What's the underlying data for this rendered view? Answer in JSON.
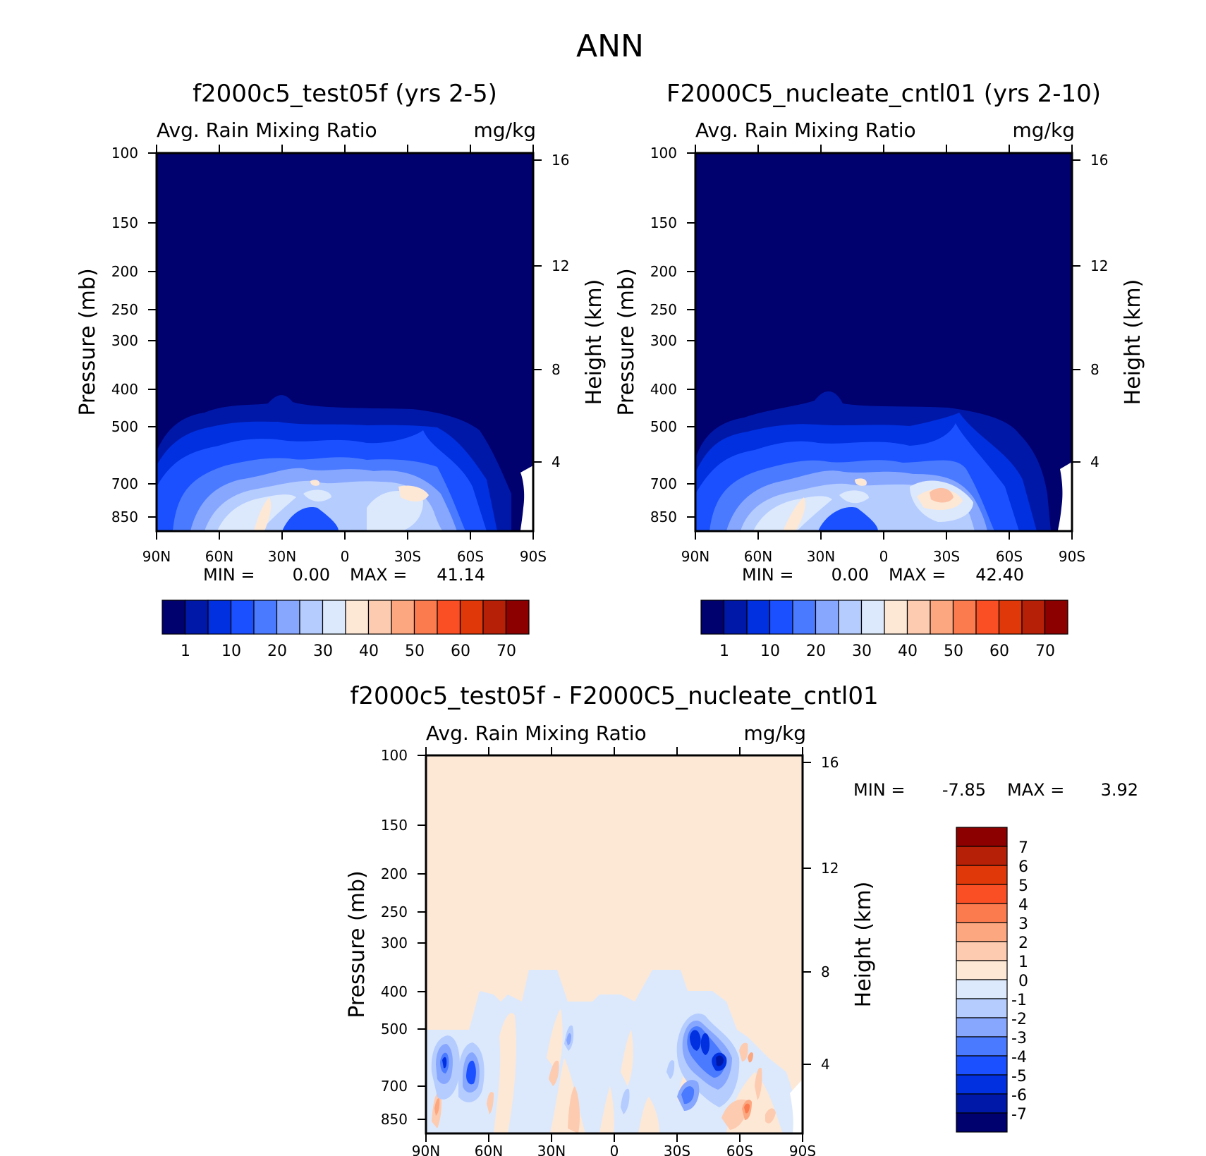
{
  "page_title": "ANN",
  "chart_data": [
    {
      "type": "heatmap",
      "title": "f2000c5_test05f (yrs 2-5)",
      "left_label": "Avg. Rain Mixing Ratio",
      "right_label": "mg/kg",
      "ylabel": "Pressure (mb)",
      "y2label": "Height (km)",
      "x_ticks": [
        "90N",
        "60N",
        "30N",
        "0",
        "30S",
        "60S",
        "90S"
      ],
      "y_ticks": [
        "100",
        "150",
        "200",
        "250",
        "300",
        "400",
        "500",
        "700",
        "850"
      ],
      "y2_ticks": [
        "16",
        "12",
        "8",
        "4"
      ],
      "min_label": "MIN =",
      "min_value": "0.00",
      "max_label": "MAX =",
      "max_value": "41.14",
      "levels": [
        "1",
        "10",
        "20",
        "30",
        "40",
        "50",
        "60",
        "70"
      ],
      "ylim": [
        100,
        925
      ],
      "xlim": [
        90,
        -90
      ]
    },
    {
      "type": "heatmap",
      "title": "F2000C5_nucleate_cntl01 (yrs 2-10)",
      "left_label": "Avg. Rain Mixing Ratio",
      "right_label": "mg/kg",
      "ylabel": "Pressure (mb)",
      "y2label": "Height (km)",
      "x_ticks": [
        "90N",
        "60N",
        "30N",
        "0",
        "30S",
        "60S",
        "90S"
      ],
      "y_ticks": [
        "100",
        "150",
        "200",
        "250",
        "300",
        "400",
        "500",
        "700",
        "850"
      ],
      "y2_ticks": [
        "16",
        "12",
        "8",
        "4"
      ],
      "min_label": "MIN =",
      "min_value": "0.00",
      "max_label": "MAX =",
      "max_value": "42.40",
      "levels": [
        "1",
        "10",
        "20",
        "30",
        "40",
        "50",
        "60",
        "70"
      ],
      "ylim": [
        100,
        925
      ],
      "xlim": [
        90,
        -90
      ]
    },
    {
      "type": "heatmap",
      "title": "f2000c5_test05f - F2000C5_nucleate_cntl01",
      "left_label": "Avg. Rain Mixing Ratio",
      "right_label": "mg/kg",
      "ylabel": "Pressure (mb)",
      "y2label": "Height (km)",
      "x_ticks": [
        "90N",
        "60N",
        "30N",
        "0",
        "30S",
        "60S",
        "90S"
      ],
      "y_ticks": [
        "100",
        "150",
        "200",
        "250",
        "300",
        "400",
        "500",
        "700",
        "850"
      ],
      "y2_ticks": [
        "16",
        "12",
        "8",
        "4"
      ],
      "min_label": "MIN =",
      "min_value": "-7.85",
      "max_label": "MAX =",
      "max_value": "3.92",
      "levels": [
        "7",
        "6",
        "5",
        "4",
        "3",
        "2",
        "1",
        "0",
        "-1",
        "-2",
        "-3",
        "-4",
        "-5",
        "-6",
        "-7"
      ],
      "ylim": [
        100,
        925
      ],
      "xlim": [
        90,
        -90
      ]
    }
  ],
  "colors": {
    "abs_scale": [
      "#00006e",
      "#0018a8",
      "#0030e0",
      "#1a50ff",
      "#4a7aff",
      "#87a7ff",
      "#b5ccff",
      "#dce9fc",
      "#fde8d6",
      "#fdcbb0",
      "#fca77f",
      "#fb7a4e",
      "#fa4f25",
      "#e03808",
      "#b52006",
      "#8c0000"
    ],
    "diff_scale": [
      "#8c0000",
      "#b52006",
      "#e03808",
      "#fa4f25",
      "#fb7a4e",
      "#fca77f",
      "#fdcbb0",
      "#fde8d6",
      "#dce9fc",
      "#b5ccff",
      "#87a7ff",
      "#4a7aff",
      "#1a50ff",
      "#0030e0",
      "#0018a8",
      "#00006e"
    ]
  }
}
